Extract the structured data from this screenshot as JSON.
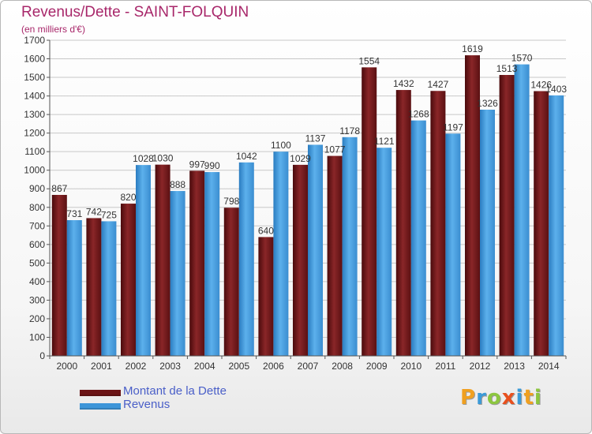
{
  "chart_data": {
    "type": "bar",
    "title": "Revenus/Dette - SAINT-FOLQUIN",
    "subtitle": "(en milliers d'€)",
    "categories": [
      "2000",
      "2001",
      "2002",
      "2003",
      "2004",
      "2005",
      "2006",
      "2007",
      "2008",
      "2009",
      "2010",
      "2011",
      "2012",
      "2013",
      "2014"
    ],
    "series": [
      {
        "name": "Montant de la Dette",
        "color": "#6b1416",
        "values": [
          867,
          742,
          820,
          1030,
          997,
          798,
          640,
          1029,
          1077,
          1554,
          1432,
          1427,
          1619,
          1513,
          1426
        ],
        "labels": [
          "867",
          "742",
          "820",
          "1030",
          "997",
          "798",
          "640",
          "1029",
          "1077",
          "1554",
          "1432",
          "1427",
          "1619",
          "1513",
          "1426"
        ]
      },
      {
        "name": "Revenus",
        "color": "#3c95d9",
        "values": [
          731,
          725,
          1028,
          888,
          990,
          1042,
          1100,
          1137,
          1178,
          1121,
          1268,
          1197,
          1326,
          1570,
          1403
        ],
        "labels": [
          "731",
          "725",
          "1028",
          "888",
          "990",
          "1042",
          "1100",
          "1137",
          "1178",
          "1121",
          "1268",
          "1197",
          "1326",
          "1570",
          "1403"
        ]
      }
    ],
    "ylim": [
      0,
      1700
    ],
    "yticks": [
      0,
      100,
      200,
      300,
      400,
      500,
      600,
      700,
      800,
      900,
      1000,
      1100,
      1200,
      1300,
      1400,
      1500,
      1600,
      1700
    ],
    "grid": true,
    "legend": "bottom-left"
  },
  "legend": {
    "items": [
      {
        "label": "Montant de la Dette",
        "color": "#6b1416"
      },
      {
        "label": "Revenus",
        "color": "#3c95d9"
      }
    ]
  },
  "logo": {
    "text": "Proxiti",
    "letters": [
      {
        "char": "P",
        "color": "#f0a020"
      },
      {
        "char": "r",
        "color": "#3a9ad8"
      },
      {
        "char": "o",
        "color": "#8cc63f"
      },
      {
        "char": "x",
        "color": "#e8501e"
      },
      {
        "char": "i",
        "color": "#3a9ad8"
      },
      {
        "char": "t",
        "color": "#f0a020"
      },
      {
        "char": "i",
        "color": "#8cc63f"
      }
    ]
  }
}
